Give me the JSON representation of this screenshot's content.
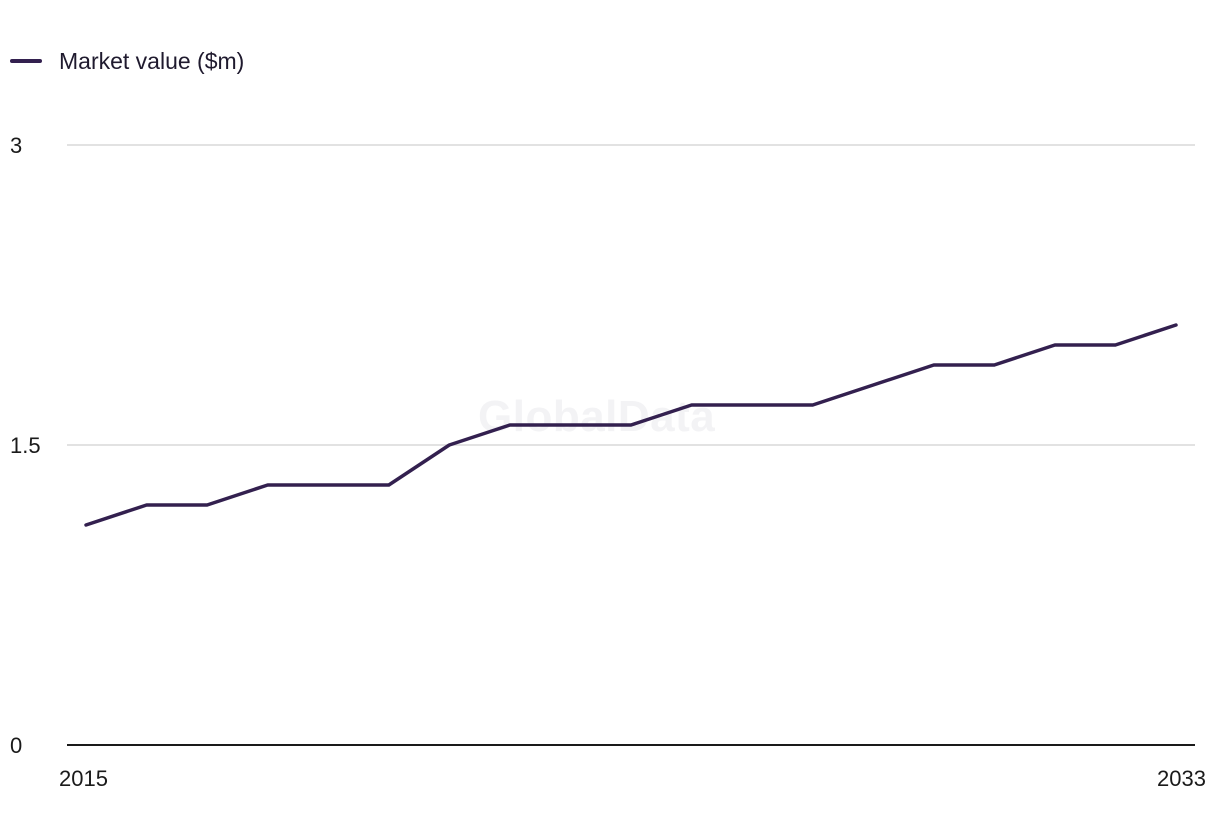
{
  "legend": {
    "label": "Market value ($m)"
  },
  "watermark": "GlobalData",
  "colors": {
    "series": "#33204f",
    "grid": "#d9d9d9",
    "axis": "#1a1a1a"
  },
  "chart_data": {
    "type": "line",
    "x": [
      2015,
      2016,
      2017,
      2018,
      2019,
      2020,
      2021,
      2022,
      2023,
      2024,
      2025,
      2026,
      2027,
      2028,
      2029,
      2030,
      2031,
      2032,
      2033
    ],
    "x_tick_labels": [
      "2015",
      "2033"
    ],
    "y_ticks": [
      0,
      1.5,
      3
    ],
    "y_tick_labels": [
      "0",
      "1.5",
      "3"
    ],
    "ylim": [
      0,
      3
    ],
    "grid": true,
    "legend_position": "top-left",
    "series": [
      {
        "name": "Market value ($m)",
        "values": [
          1.1,
          1.2,
          1.2,
          1.3,
          1.3,
          1.3,
          1.5,
          1.6,
          1.6,
          1.6,
          1.7,
          1.7,
          1.7,
          1.8,
          1.9,
          1.9,
          2.0,
          2.0,
          2.1
        ]
      }
    ]
  }
}
